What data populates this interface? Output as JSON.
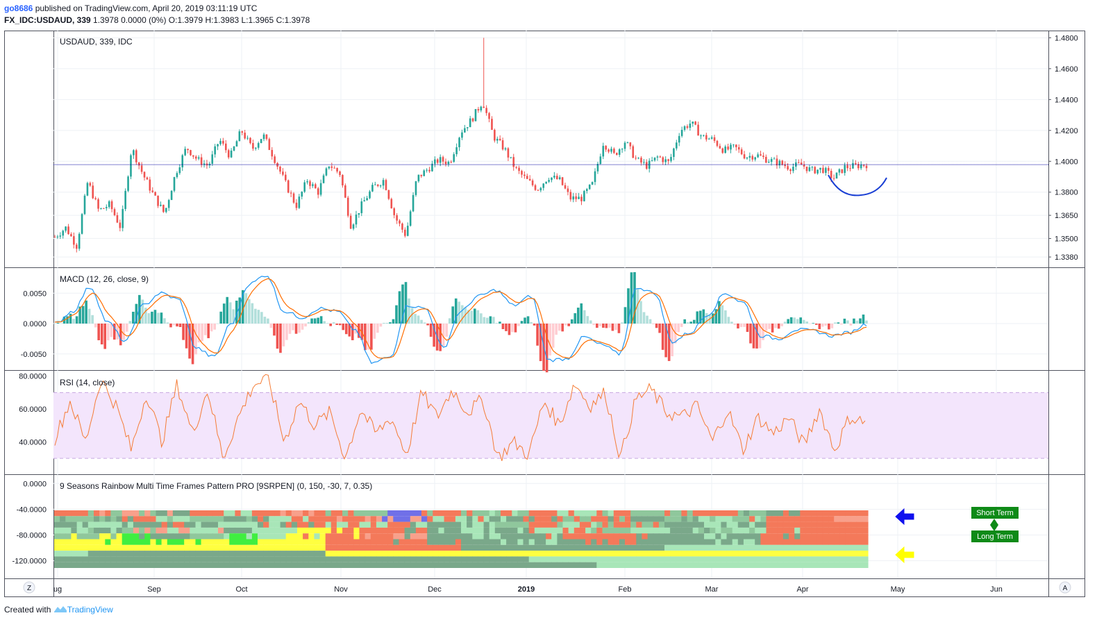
{
  "header": {
    "user": "go8686",
    "published": " published on TradingView.com, April 20, 2019 03:11:19 UTC",
    "symbol": "FX_IDC:USDAUD, 339",
    "quote": " 1.3978 0.0000 (0%) O:1.3979 H:1.3983 L:1.3965 C:1.3978"
  },
  "footer": {
    "created_with": "Created with ",
    "brand": "TradingView"
  },
  "corner_buttons": {
    "left": "Z",
    "right": "A"
  },
  "colors": {
    "up": "#26a69a",
    "down": "#ef5350",
    "macd": "#2196f3",
    "signal": "#ff6d00",
    "rsi": "#f57c36",
    "rsi_band": "#f3e5fc",
    "price_line": "#0000a0",
    "arrow_short": "#1010ee",
    "arrow_long": "#ffff00",
    "legend_bg": "#0e8a17",
    "annotation_arc": "#1a3fd4"
  },
  "chart_data": [
    {
      "type": "candlestick",
      "title": "USDAUD, 339, IDC",
      "x_ticks": [
        "ug",
        "Sep",
        "Oct",
        "Nov",
        "Dec",
        "2019",
        "Feb",
        "Mar",
        "Apr",
        "May",
        "Jun"
      ],
      "y_ticks": [
        "1.4800",
        "1.4600",
        "1.4400",
        "1.4200",
        "1.4000",
        "1.3800",
        "1.3650",
        "1.3500",
        "1.3380"
      ],
      "ylim": [
        1.334,
        1.482
      ],
      "last_price": 1.3978,
      "path": [
        1.351,
        1.357,
        1.345,
        1.387,
        1.368,
        1.372,
        1.357,
        1.409,
        1.392,
        1.378,
        1.366,
        1.392,
        1.409,
        1.401,
        1.397,
        1.414,
        1.403,
        1.42,
        1.408,
        1.417,
        1.402,
        1.386,
        1.371,
        1.388,
        1.38,
        1.398,
        1.392,
        1.358,
        1.372,
        1.383,
        1.388,
        1.364,
        1.352,
        1.389,
        1.395,
        1.401,
        1.399,
        1.419,
        1.427,
        1.439,
        1.416,
        1.408,
        1.395,
        1.388,
        1.382,
        1.39,
        1.388,
        1.376,
        1.376,
        1.385,
        1.412,
        1.404,
        1.413,
        1.401,
        1.397,
        1.403,
        1.399,
        1.42,
        1.425,
        1.416,
        1.414,
        1.407,
        1.409,
        1.403,
        1.404,
        1.401,
        1.399,
        1.396,
        1.398,
        1.394,
        1.395,
        1.389,
        1.396,
        1.397,
        1.398
      ],
      "spike": {
        "index": 39,
        "high": 1.48
      },
      "annotation": "arc below last candles"
    },
    {
      "type": "line+histogram",
      "title": "MACD (12, 26, close, 9)",
      "y_ticks": [
        "0.0050",
        "0.0000",
        "-0.0050"
      ],
      "ylim": [
        -0.0072,
        0.0088
      ],
      "macd_path": [
        0.0,
        0.002,
        0.006,
        0.0002,
        -0.003,
        0.003,
        0.005,
        0.004,
        -0.004,
        -0.0055,
        0.0,
        0.0065,
        0.008,
        0.002,
        0.001,
        0.0025,
        0.002,
        -0.001,
        -0.0065,
        -0.0055,
        0.003,
        0.0025,
        -0.004,
        0.002,
        0.0045,
        0.0055,
        0.003,
        0.0045,
        -0.006,
        -0.0058,
        -0.0022,
        -0.0035,
        -0.005,
        0.006,
        0.005,
        -0.003,
        -0.0015,
        0.0015,
        0.005,
        0.0035,
        -0.002,
        -0.0025,
        -0.001,
        -0.0012,
        -0.002,
        -0.0015,
        -0.0001
      ],
      "signal_lag_fraction": 0.35
    },
    {
      "type": "line",
      "title": "RSI (14, close)",
      "y_ticks": [
        "80.0000",
        "60.0000",
        "40.0000"
      ],
      "ylim": [
        22,
        82
      ],
      "band": [
        30,
        70
      ],
      "path": [
        42,
        65,
        40,
        78,
        62,
        35,
        70,
        40,
        75,
        45,
        72,
        30,
        55,
        75,
        78,
        40,
        65,
        50,
        58,
        30,
        60,
        45,
        55,
        32,
        70,
        55,
        72,
        58,
        66,
        30,
        40,
        32,
        65,
        50,
        76,
        62,
        70,
        30,
        66,
        72,
        58,
        55,
        62,
        40,
        60,
        35,
        55,
        45,
        55,
        38,
        60,
        35,
        55,
        52
      ],
      "x_end_fraction": 0.8
    },
    {
      "type": "heatmap",
      "title": "9 Seasons Rainbow Multi Time Frames Pattern PRO [9SRPEN] (0, 150, -30, 7, 0.35)",
      "y_ticks": [
        "0.0000",
        "-40.0000",
        "-80.0000",
        "-120.0000"
      ],
      "ylim": [
        -143,
        10
      ],
      "legend": [
        "Short Term",
        "Long Term"
      ],
      "rows": [
        [
          "#f4795a",
          "#8fc79c",
          "#f8a08b",
          "#7aa88a",
          "#f4795a",
          "#a8e6b8",
          "#f4795a",
          "#f8a08b",
          "#f4795a",
          "#8fc79c",
          "#7070e8",
          "#f4795a",
          "#8fc79c",
          "#a8e6b8",
          "#f4795a",
          "#a8e6b8",
          "#f4795a",
          "#8fc79c",
          "#f4795a",
          "#f4795a",
          "#8fc79c",
          "#7aa88a",
          "#f4795a",
          "#f4795a"
        ],
        [
          "#8fc79c",
          "#7aa88a",
          "#f4795a",
          "#a8e6b8",
          "#8fc79c",
          "#7aa88a",
          "#a8e6b8",
          "#f4795a",
          "#f4795a",
          "#f8a08b",
          "#7070e8",
          "#f4795a",
          "#a8e6b8",
          "#7aa88a",
          "#f4795a",
          "#8fc79c",
          "#f4795a",
          "#7aa88a",
          "#8fc79c",
          "#a8e6b8",
          "#8fc79c",
          "#f4795a",
          "#f4795a",
          "#f8a08b"
        ],
        [
          "#7aa88a",
          "#a8e6b8",
          "#7aa88a",
          "#f4795a",
          "#7aa88a",
          "#a8e6b8",
          "#7aa88a",
          "#f4795a",
          "#f4795a",
          "#a8e6b8",
          "#f4795a",
          "#7aa88a",
          "#a8e6b8",
          "#8fc79c",
          "#f4795a",
          "#a8e6b8",
          "#f4795a",
          "#8fc79c",
          "#7aa88a",
          "#a8e6b8",
          "#7aa88a",
          "#f4795a",
          "#f4795a",
          "#f4795a"
        ],
        [
          "#a8e6b8",
          "#7aa88a",
          "#8fc79c",
          "#f8a08b",
          "#a8e6b8",
          "#7aa88a",
          "#a8e6b8",
          "#ffff40",
          "#f4795a",
          "#f4795a",
          "#f4795a",
          "#7aa88a",
          "#a8e6b8",
          "#7aa88a",
          "#a8e6b8",
          "#f4795a",
          "#8fc79c",
          "#a8e6b8",
          "#7aa88a",
          "#8fc79c",
          "#a8e6b8",
          "#f4795a",
          "#f4795a",
          "#f4795a"
        ],
        [
          "#8fc79c",
          "#ffff40",
          "#40ee40",
          "#7aa88a",
          "#8fc79c",
          "#40ee40",
          "#a8e6b8",
          "#ffff40",
          "#f4795a",
          "#f4795a",
          "#f8a08b",
          "#7aa88a",
          "#7aa88a",
          "#a8e6b8",
          "#7aa88a",
          "#f4795a",
          "#f4795a",
          "#7aa88a",
          "#7aa88a",
          "#a8e6b8",
          "#7aa88a",
          "#f4795a",
          "#f4795a",
          "#f4795a"
        ],
        [
          "#ffff40",
          "#ffff40",
          "#40ee40",
          "#40ee40",
          "#ffff40",
          "#40ee40",
          "#ffff40",
          "#ffff40",
          "#f4795a",
          "#f4795a",
          "#f4795a",
          "#7aa88a",
          "#7aa88a",
          "#7aa88a",
          "#a8e6b8",
          "#7aa88a",
          "#f4795a",
          "#7aa88a",
          "#7aa88a",
          "#7aa88a",
          "#a8e6b8",
          "#f4795a",
          "#f4795a",
          "#f4795a"
        ],
        [
          "#ffff40",
          "#ffff40",
          "#ffff40",
          "#ffff40",
          "#ffff40",
          "#ffff40",
          "#ffff40",
          "#ffff40",
          "#f4795a",
          "#f4795a",
          "#f4795a",
          "#f4795a",
          "#7aa88a",
          "#7aa88a",
          "#7aa88a",
          "#7aa88a",
          "#7aa88a",
          "#7aa88a",
          "#a8e6b8",
          "#a8e6b8",
          "#a8e6b8",
          "#a8e6b8",
          "#a8e6b8",
          "#a8e6b8"
        ],
        [
          "#a8e6b8",
          "#7aa88a",
          "#7aa88a",
          "#7aa88a",
          "#7aa88a",
          "#7aa88a",
          "#7aa88a",
          "#7aa88a",
          "#ffff40",
          "#ffff40",
          "#ffff40",
          "#ffff40",
          "#ffff40",
          "#ffff40",
          "#ffff40",
          "#ffff40",
          "#ffff40",
          "#ffff40",
          "#ffff40",
          "#ffff40",
          "#ffff40",
          "#ffff40",
          "#ffff40",
          "#ffff40"
        ],
        [
          "#7aa88a",
          "#7aa88a",
          "#7aa88a",
          "#7aa88a",
          "#7aa88a",
          "#7aa88a",
          "#7aa88a",
          "#7aa88a",
          "#7aa88a",
          "#7aa88a",
          "#7aa88a",
          "#7aa88a",
          "#7aa88a",
          "#7aa88a",
          "#a8e6b8",
          "#a8e6b8",
          "#a8e6b8",
          "#a8e6b8",
          "#a8e6b8",
          "#a8e6b8",
          "#a8e6b8",
          "#a8e6b8",
          "#a8e6b8",
          "#a8e6b8"
        ],
        [
          "#7aa88a",
          "#7aa88a",
          "#7aa88a",
          "#7aa88a",
          "#7aa88a",
          "#7aa88a",
          "#7aa88a",
          "#7aa88a",
          "#7aa88a",
          "#7aa88a",
          "#7aa88a",
          "#7aa88a",
          "#7aa88a",
          "#7aa88a",
          "#7aa88a",
          "#7aa88a",
          "#a8e6b8",
          "#a8e6b8",
          "#a8e6b8",
          "#a8e6b8",
          "#a8e6b8",
          "#a8e6b8",
          "#a8e6b8",
          "#a8e6b8"
        ]
      ]
    }
  ]
}
